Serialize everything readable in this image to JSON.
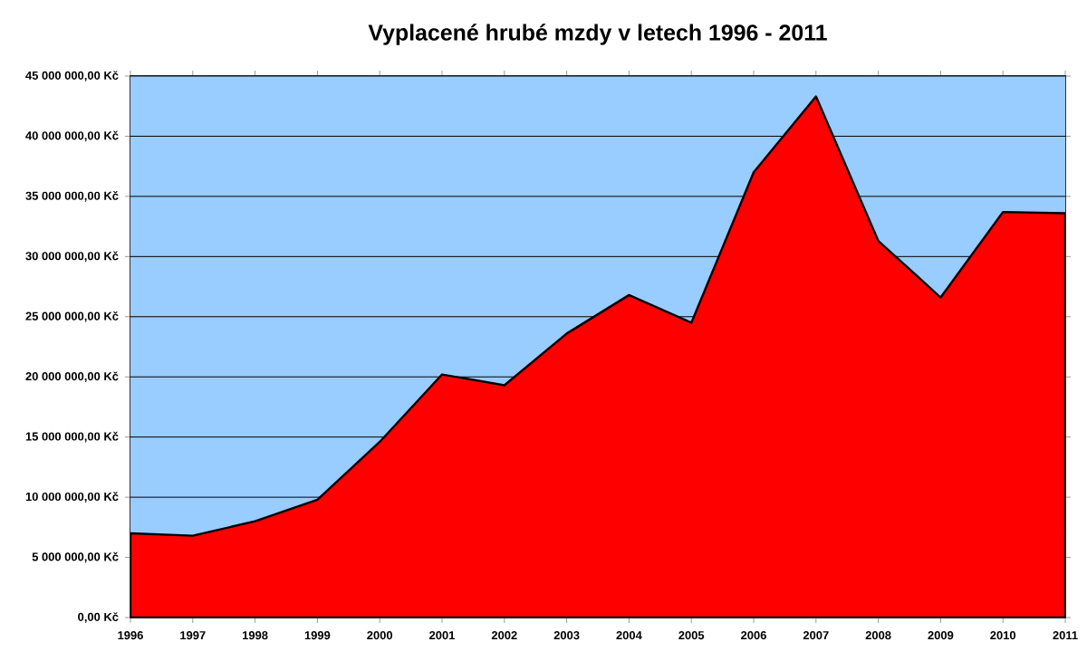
{
  "chart_data": {
    "type": "area",
    "title": "Vyplacené hrubé mzdy v letech 1996 - 2011",
    "categories": [
      "1996",
      "1997",
      "1998",
      "1999",
      "2000",
      "2001",
      "2002",
      "2003",
      "2004",
      "2005",
      "2006",
      "2007",
      "2008",
      "2009",
      "2010",
      "2011"
    ],
    "values": [
      7000000,
      6800000,
      8000000,
      9800000,
      14600000,
      20200000,
      19300000,
      23600000,
      26800000,
      24500000,
      37000000,
      43300000,
      31300000,
      26600000,
      33700000,
      33600000
    ],
    "color": "#ff0000",
    "grid": "y",
    "bands": [
      {
        "axis": "y",
        "from": 0,
        "to": 45000000,
        "color": "#99ccff"
      }
    ],
    "ylim": [
      0,
      45000000
    ],
    "yticks": [
      {
        "value": 0,
        "label": "0,00 Kč"
      },
      {
        "value": 5000000,
        "label": "5 000 000,00 Kč"
      },
      {
        "value": 10000000,
        "label": "10 000 000,00 Kč"
      },
      {
        "value": 15000000,
        "label": "15 000 000,00 Kč"
      },
      {
        "value": 20000000,
        "label": "20 000 000,00 Kč"
      },
      {
        "value": 25000000,
        "label": "25 000 000,00 Kč"
      },
      {
        "value": 30000000,
        "label": "30 000 000,00 Kč"
      },
      {
        "value": 35000000,
        "label": "35 000 000,00 Kč"
      },
      {
        "value": 40000000,
        "label": "40 000 000,00 Kč"
      },
      {
        "value": 45000000,
        "label": "45 000 000,00 Kč"
      }
    ]
  }
}
